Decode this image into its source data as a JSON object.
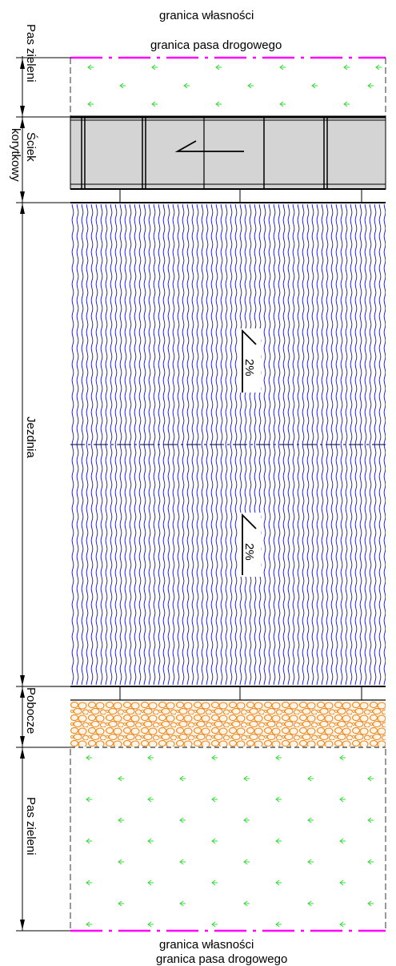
{
  "top_labels": {
    "property_boundary": "granica własności",
    "road_boundary": "granica pasa drogowego"
  },
  "bottom_labels": {
    "property_boundary": "granica własności",
    "road_boundary": "granica pasa drogowego"
  },
  "strips": {
    "green_top": "Pas zieleni",
    "gutter": "Ściek korytkowy",
    "roadway": "Jezdnia",
    "shoulder": "Pobocze",
    "green_bottom": "Pas zieleni"
  },
  "slopes": {
    "upper": "2%",
    "lower": "2%"
  },
  "colors": {
    "boundary_magenta": "#ff00ff",
    "grass_green": "#33dd33",
    "asphalt_blue": "#1010cc",
    "gravel_orange": "#f08010",
    "gutter_fill": "#d4d4d4"
  },
  "icons": {
    "grass_symbol": "grass-arrow-icon",
    "slope_symbol": "slope-arrow-icon"
  }
}
